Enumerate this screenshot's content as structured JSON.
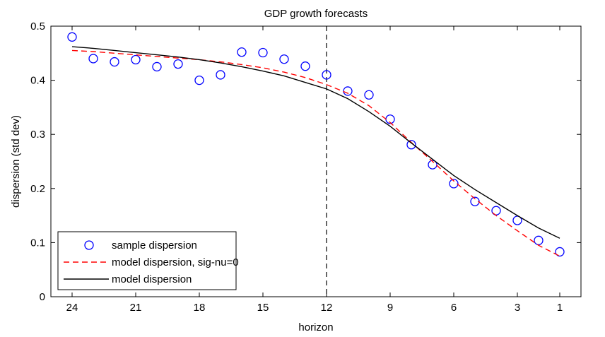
{
  "chart_data": {
    "type": "line",
    "title": "GDP growth forecasts",
    "xlabel": "horizon",
    "ylabel": "dispersion (std dev)",
    "xlim": [
      25,
      0
    ],
    "ylim": [
      0,
      0.5
    ],
    "x_reversed": true,
    "xticks": [
      24,
      21,
      18,
      15,
      12,
      9,
      6,
      3,
      1
    ],
    "yticks": [
      0,
      0.1,
      0.2,
      0.3,
      0.4,
      0.5
    ],
    "ytick_labels": [
      "0",
      "0.1",
      "0.2",
      "0.3",
      "0.4",
      "0.5"
    ],
    "grid": false,
    "legend_position": "bottom-left",
    "vertical_line": {
      "x": 12,
      "style": "dashed",
      "color": "#000000"
    },
    "series": [
      {
        "name": "sample dispersion",
        "style": "markers",
        "marker": "circle",
        "color": "#0000ff",
        "x": [
          24,
          23,
          22,
          21,
          20,
          19,
          18,
          17,
          16,
          15,
          14,
          13,
          12,
          11,
          10,
          9,
          8,
          7,
          6,
          5,
          4,
          3,
          2,
          1
        ],
        "y": [
          0.48,
          0.44,
          0.434,
          0.438,
          0.425,
          0.43,
          0.4,
          0.41,
          0.452,
          0.451,
          0.439,
          0.426,
          0.41,
          0.38,
          0.373,
          0.328,
          0.281,
          0.244,
          0.209,
          0.176,
          0.159,
          0.141,
          0.104,
          0.083
        ]
      },
      {
        "name": "model dispersion, sig-nu=0",
        "style": "dashed",
        "color": "#ff0000",
        "x": [
          24,
          23,
          22,
          21,
          20,
          19,
          18,
          17,
          16,
          15,
          14,
          13,
          12,
          11,
          10,
          9,
          8,
          7,
          6,
          5,
          4,
          3,
          2,
          1
        ],
        "y": [
          0.455,
          0.453,
          0.45,
          0.447,
          0.444,
          0.441,
          0.438,
          0.434,
          0.429,
          0.423,
          0.415,
          0.405,
          0.392,
          0.376,
          0.353,
          0.322,
          0.285,
          0.25,
          0.214,
          0.181,
          0.15,
          0.122,
          0.095,
          0.075
        ]
      },
      {
        "name": "model dispersion",
        "style": "solid",
        "color": "#000000",
        "x": [
          24,
          23,
          22,
          21,
          20,
          19,
          18,
          17,
          16,
          15,
          14,
          13,
          12,
          11,
          10,
          9,
          8,
          7,
          6,
          5,
          4,
          3,
          2,
          1
        ],
        "y": [
          0.462,
          0.459,
          0.455,
          0.451,
          0.447,
          0.443,
          0.438,
          0.432,
          0.425,
          0.417,
          0.408,
          0.396,
          0.384,
          0.366,
          0.342,
          0.315,
          0.284,
          0.254,
          0.224,
          0.198,
          0.174,
          0.15,
          0.127,
          0.108
        ]
      }
    ]
  }
}
